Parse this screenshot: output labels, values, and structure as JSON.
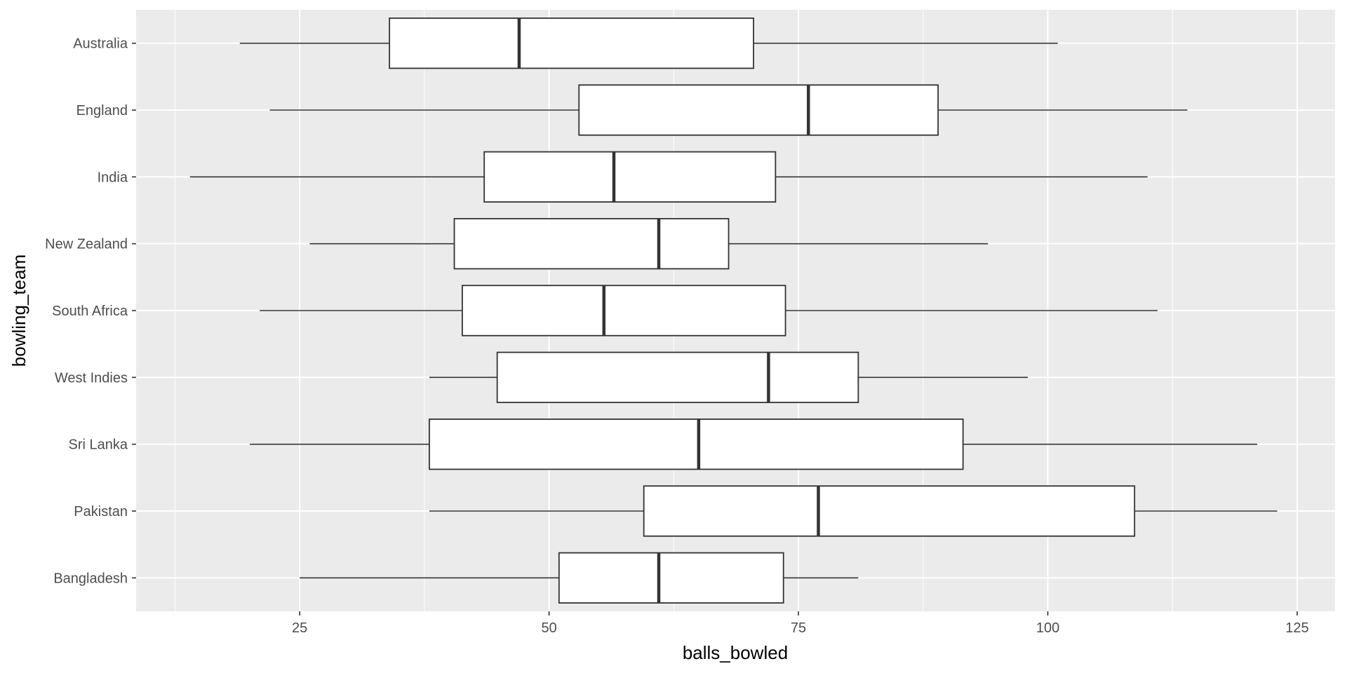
{
  "chart_data": {
    "type": "boxplot",
    "orientation": "horizontal",
    "title": "",
    "xlabel": "balls_bowled",
    "ylabel": "bowling_team",
    "xlim": [
      8.6,
      128.8
    ],
    "x_ticks": [
      25,
      50,
      75,
      100,
      125
    ],
    "grid": true,
    "colors": {
      "panel_background": "#ebebeb",
      "grid_major": "#ffffff",
      "box_fill": "#ffffff",
      "box_line": "#333333",
      "tick_label": "#4d4d4d"
    },
    "categories": [
      "Australia",
      "England",
      "India",
      "New Zealand",
      "South Africa",
      "West Indies",
      "Sri Lanka",
      "Pakistan",
      "Bangladesh"
    ],
    "boxes": [
      {
        "team": "Australia",
        "whisker_low": 19,
        "q1": 34,
        "median": 47,
        "q3": 70.5,
        "whisker_high": 101
      },
      {
        "team": "England",
        "whisker_low": 22,
        "q1": 53,
        "median": 76,
        "q3": 89,
        "whisker_high": 114
      },
      {
        "team": "India",
        "whisker_low": 14,
        "q1": 43.5,
        "median": 56.5,
        "q3": 72.7,
        "whisker_high": 110
      },
      {
        "team": "New Zealand",
        "whisker_low": 26,
        "q1": 40.5,
        "median": 61,
        "q3": 68,
        "whisker_high": 94
      },
      {
        "team": "South Africa",
        "whisker_low": 21,
        "q1": 41.3,
        "median": 55.5,
        "q3": 73.7,
        "whisker_high": 111
      },
      {
        "team": "West Indies",
        "whisker_low": 38,
        "q1": 44.8,
        "median": 72,
        "q3": 81,
        "whisker_high": 98
      },
      {
        "team": "Sri Lanka",
        "whisker_low": 20,
        "q1": 38,
        "median": 65,
        "q3": 91.5,
        "whisker_high": 121
      },
      {
        "team": "Pakistan",
        "whisker_low": 38,
        "q1": 59.5,
        "median": 77,
        "q3": 108.7,
        "whisker_high": 123
      },
      {
        "team": "Bangladesh",
        "whisker_low": 25,
        "q1": 51,
        "median": 61,
        "q3": 73.5,
        "whisker_high": 81
      }
    ]
  }
}
